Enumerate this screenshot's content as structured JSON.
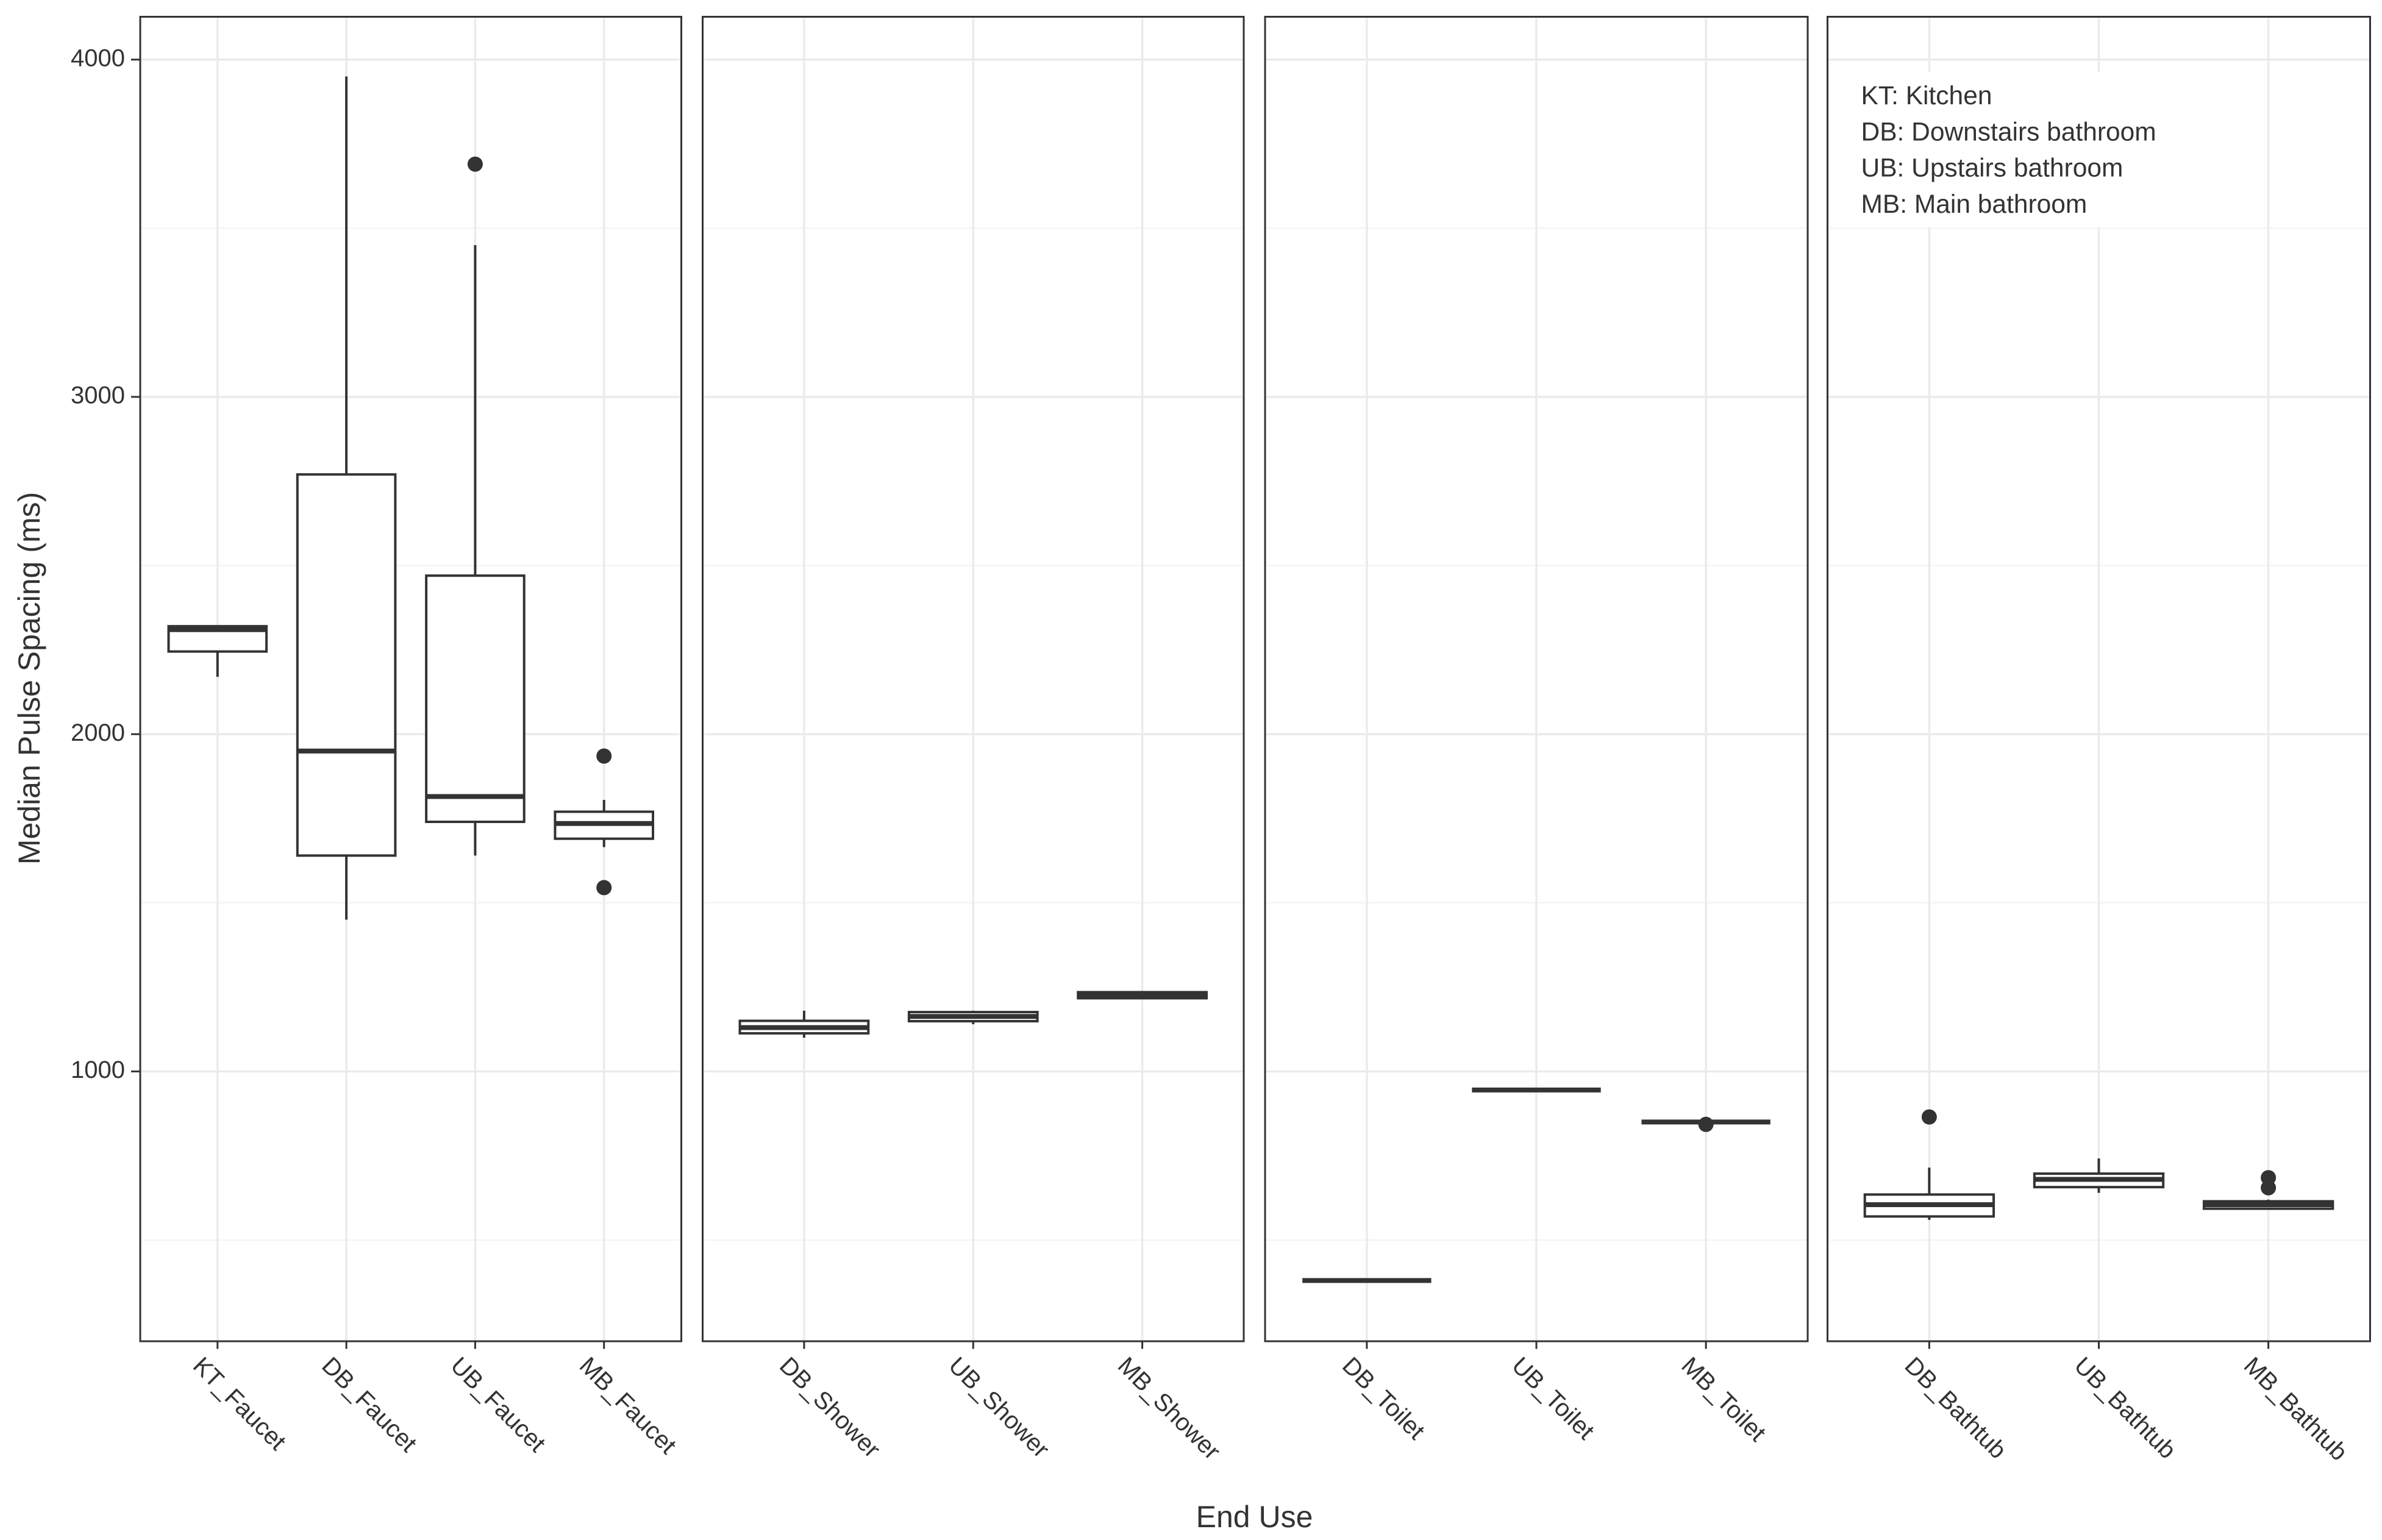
{
  "chart_data": {
    "type": "box",
    "y_label": "Median Pulse Spacing (ms)",
    "x_label": "End Use",
    "ylim": [
      200,
      4127
    ],
    "yticks": [
      1000,
      2000,
      3000,
      4000
    ],
    "minor_yticks": [
      500,
      1500,
      2500,
      3500
    ],
    "grid": true,
    "color": "#333333",
    "annotation": [
      "KT: Kitchen",
      "DB: Downstairs bathroom",
      "UB: Upstairs bathroom",
      "MB: Main bathroom"
    ],
    "panels": [
      {
        "categories": [
          "KT_Faucet",
          "DB_Faucet",
          "UB_Faucet",
          "MB_Faucet"
        ],
        "boxes": [
          {
            "min": 2170,
            "q1": 2245,
            "median": 2310,
            "q3": 2320,
            "max": 2320,
            "outliers": []
          },
          {
            "min": 1450,
            "q1": 1640,
            "median": 1950,
            "q3": 2770,
            "max": 3950,
            "outliers": []
          },
          {
            "min": 1640,
            "q1": 1740,
            "median": 1815,
            "q3": 2470,
            "max": 3450,
            "outliers": [
              3690
            ]
          },
          {
            "min": 1665,
            "q1": 1690,
            "median": 1735,
            "q3": 1770,
            "max": 1805,
            "outliers": [
              1935,
              1545
            ]
          }
        ]
      },
      {
        "categories": [
          "DB_Shower",
          "UB_Shower",
          "MB_Shower"
        ],
        "boxes": [
          {
            "min": 1100,
            "q1": 1113,
            "median": 1130,
            "q3": 1150,
            "max": 1180,
            "outliers": []
          },
          {
            "min": 1140,
            "q1": 1149,
            "median": 1163,
            "q3": 1176,
            "max": 1180,
            "outliers": []
          },
          {
            "min": 1215,
            "q1": 1217,
            "median": 1226,
            "q3": 1235,
            "max": 1237,
            "outliers": []
          }
        ]
      },
      {
        "categories": [
          "DB_Toilet",
          "UB_Toilet",
          "MB_Toilet"
        ],
        "boxes": [
          {
            "min": 380,
            "q1": 380,
            "median": 380,
            "q3": 380,
            "max": 380,
            "outliers": []
          },
          {
            "min": 945,
            "q1": 945,
            "median": 945,
            "q3": 945,
            "max": 945,
            "outliers": []
          },
          {
            "min": 850,
            "q1": 850,
            "median": 850,
            "q3": 850,
            "max": 850,
            "outliers": [
              843
            ]
          }
        ]
      },
      {
        "categories": [
          "DB_Bathtub",
          "UB_Bathtub",
          "MB_Bathtub"
        ],
        "boxes": [
          {
            "min": 560,
            "q1": 570,
            "median": 605,
            "q3": 635,
            "max": 715,
            "outliers": [
              865
            ]
          },
          {
            "min": 640,
            "q1": 657,
            "median": 680,
            "q3": 697,
            "max": 742,
            "outliers": []
          },
          {
            "min": 590,
            "q1": 593,
            "median": 605,
            "q3": 615,
            "max": 620,
            "outliers": [
              685,
              655
            ]
          }
        ]
      }
    ]
  }
}
